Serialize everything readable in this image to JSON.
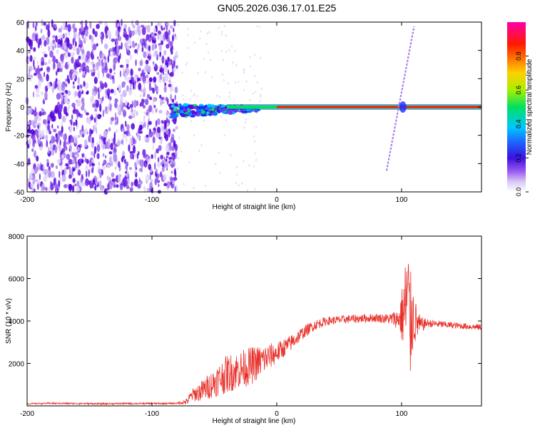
{
  "title": "GN05.2026.036.17.01.E25",
  "chart_data": [
    {
      "type": "heatmap",
      "xlabel": "Height of straight line (km)",
      "ylabel": "Frequency (Hz)",
      "xlim": [
        -200,
        164
      ],
      "ylim": [
        -60,
        60
      ],
      "xticks": [
        "-200",
        "-100",
        "0",
        "100"
      ],
      "xtick_values": [
        -200,
        -100,
        0,
        100
      ],
      "yticks": [
        "60",
        "40",
        "20",
        "0",
        "-20",
        "-40",
        "-60"
      ],
      "ytick_values": [
        60,
        40,
        20,
        0,
        -20,
        -40,
        -60
      ],
      "colorbar": {
        "label": "Normalized spectral amplitude",
        "ticks": [
          "0.0",
          "0.2",
          "0.4",
          "0.6",
          "0.8"
        ],
        "tick_values": [
          0.0,
          0.2,
          0.4,
          0.6,
          0.8
        ],
        "range": [
          0,
          1
        ]
      },
      "features": {
        "noise_region_x": [
          -200,
          -80
        ],
        "carrier_line_freq_hz": 0,
        "carrier_onset_x": -85,
        "doppler_streak": {
          "x": [
            88,
            110
          ],
          "freq_hz": [
            -45,
            57
          ]
        }
      },
      "colors": {
        "stops": [
          "#e6e6ff",
          "#9b5cf0",
          "#5a0ad8",
          "#1a2cff",
          "#00c8ff",
          "#00e060",
          "#ffff00",
          "#ff7a00",
          "#ff0000",
          "#ff00aa"
        ]
      }
    },
    {
      "type": "line",
      "xlabel": "Height of straight line (km)",
      "ylabel": "SNR (10 * v/v)",
      "xlim": [
        -200,
        164
      ],
      "ylim": [
        0,
        8000
      ],
      "xticks": [
        "-200",
        "-100",
        "0",
        "100"
      ],
      "xtick_values": [
        -200,
        -100,
        0,
        100
      ],
      "yticks": [
        "8000",
        "6000",
        "4000",
        "2000"
      ],
      "ytick_values": [
        8000,
        6000,
        4000,
        2000
      ],
      "series": [
        {
          "color": "#e8302a",
          "x": [
            -200,
            -180,
            -160,
            -140,
            -120,
            -100,
            -80,
            -72,
            -68,
            -60,
            -50,
            -40,
            -30,
            -20,
            -10,
            0,
            10,
            20,
            30,
            40,
            60,
            80,
            90,
            98,
            102,
            105,
            107,
            108,
            110,
            115,
            120,
            140,
            164
          ],
          "values": [
            100,
            120,
            110,
            100,
            110,
            110,
            120,
            200,
            500,
            700,
            1100,
            1500,
            1700,
            1900,
            2200,
            2500,
            2900,
            3400,
            3800,
            4000,
            4100,
            4150,
            4100,
            4100,
            4400,
            5200,
            3500,
            4500,
            4000,
            3800,
            3900,
            3800,
            3700
          ],
          "noise": [
            30,
            40,
            40,
            40,
            40,
            40,
            40,
            150,
            300,
            500,
            700,
            900,
            900,
            900,
            700,
            500,
            400,
            300,
            250,
            200,
            200,
            200,
            250,
            500,
            2000,
            3000,
            2500,
            2500,
            1200,
            400,
            200,
            150,
            150
          ]
        }
      ]
    }
  ]
}
